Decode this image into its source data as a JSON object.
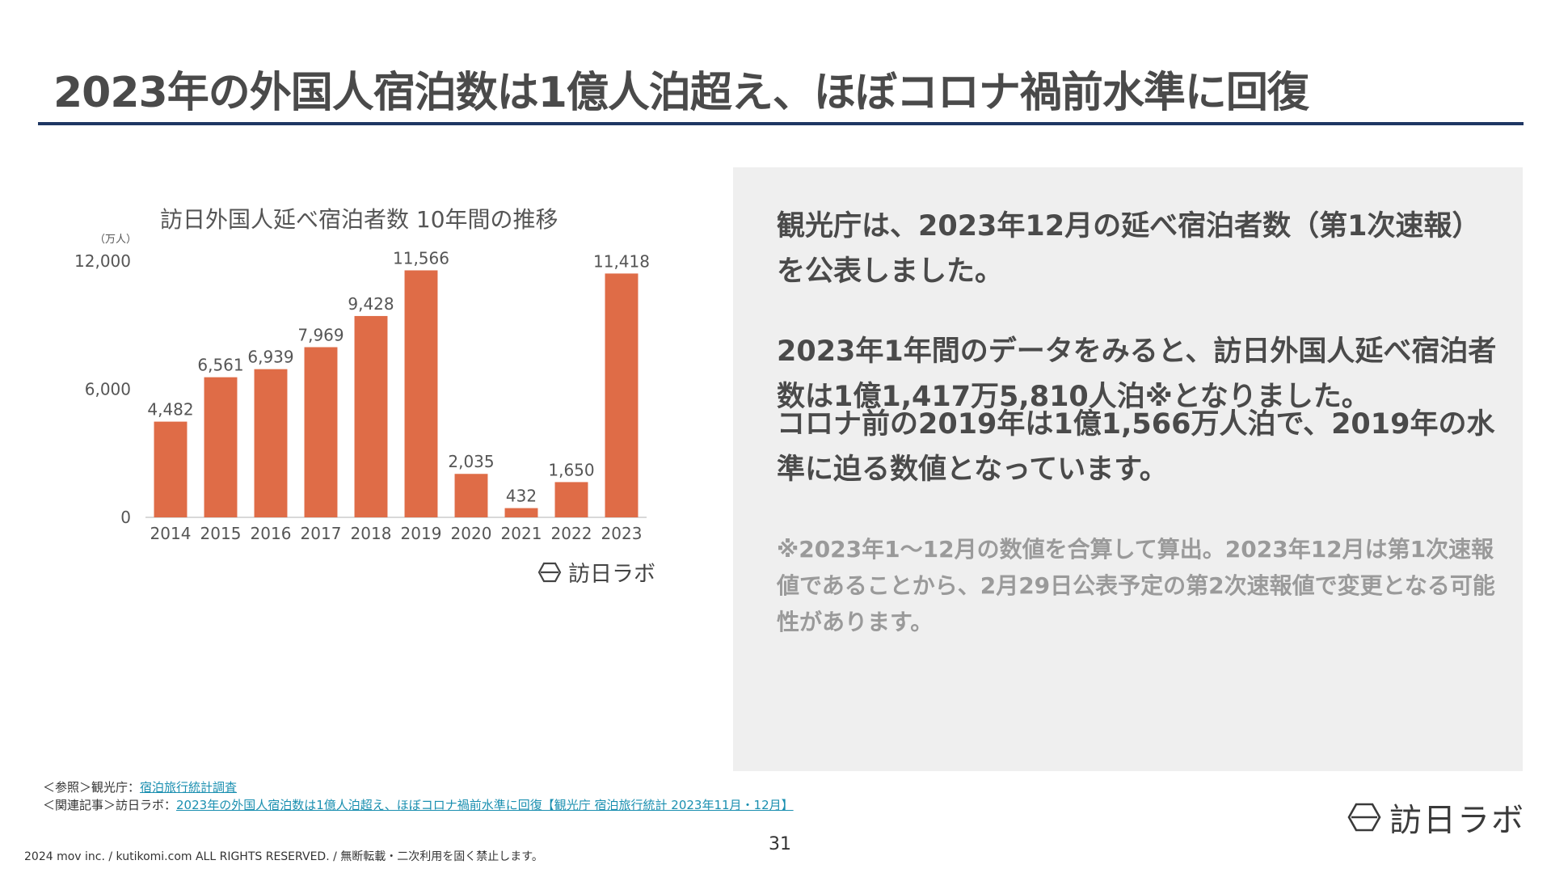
{
  "header": {
    "title": "2023年の外国人宿泊数は1億人泊超え、ほぼコロナ禍前水準に回復"
  },
  "chart_title": "訪日外国人延べ宿泊者数 10年間の推移",
  "chart_logo_text": "訪日ラボ",
  "chart_data": {
    "type": "bar",
    "title": "訪日外国人延べ宿泊者数 10年間の推移",
    "unit_label": "（万人）",
    "categories": [
      "2014",
      "2015",
      "2016",
      "2017",
      "2018",
      "2019",
      "2020",
      "2021",
      "2022",
      "2023"
    ],
    "values": [
      4482,
      6561,
      6939,
      7969,
      9428,
      11566,
      2035,
      432,
      1650,
      11418
    ],
    "value_labels": [
      "4,482",
      "6,561",
      "6,939",
      "7,969",
      "9,428",
      "11,566",
      "2,035",
      "432",
      "1,650",
      "11,418"
    ],
    "yticks": [
      0,
      6000,
      12000
    ],
    "ytick_labels": [
      "0",
      "6,000",
      "12,000"
    ],
    "ylim": [
      0,
      12000
    ],
    "grid": false,
    "bar_color": "#df6c47"
  },
  "panel": {
    "p1": "観光庁は、2023年12月の延べ宿泊者数（第1次速報）を公表しました。",
    "p2": "2023年1年間のデータをみると、訪日外国人延べ宿泊者数は1億1,417万5,810人泊※となりました。",
    "p3": "コロナ前の2019年は1億1,566万人泊で、2019年の水準に迫る数値となっています。",
    "note": "※2023年1～12月の数値を合算して算出。2023年12月は第1次速報値であることから、2月29日公表予定の第2次速報値で変更となる可能性があります。"
  },
  "refs": {
    "ref1_prefix": "＜参照＞観光庁：",
    "ref1_link": "宿泊旅行統計調査",
    "ref2_prefix": "＜関連記事＞訪日ラボ：",
    "ref2_link": "2023年の外国人宿泊数は1億人泊超え、ほぼコロナ禍前水準に回復【観光庁 宿泊旅行統計 2023年11月・12月】"
  },
  "footer": {
    "page_number": "31",
    "copyright": "2024 mov inc. / kutikomi.com ALL RIGHTS RESERVED. / 無断転載・二次利用を固く禁止します。",
    "brand": "訪日ラボ"
  }
}
